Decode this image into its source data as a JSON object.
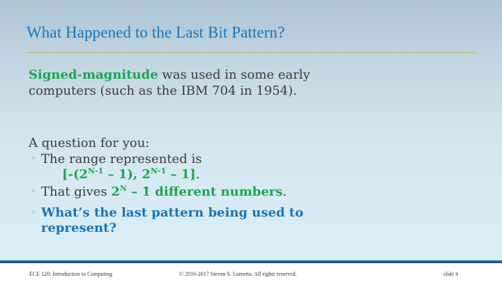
{
  "slide": {
    "title": "What Happened to the Last Bit Pattern?",
    "para": {
      "term": "Signed-magnitude",
      "line1_rest": " was used in some early",
      "line2": "computers (such as the IBM 704 in 1954)."
    },
    "question_intro": "A question for you:",
    "bullets": [
      {
        "text": "The range represented is",
        "formula": {
          "p1": "[-(2",
          "sup1": "N-1",
          "p2": " – 1), 2",
          "sup2": "N-1",
          "p3": " – 1]",
          "end": "."
        }
      },
      {
        "pre": "That gives ",
        "base": "2",
        "sup": "N",
        "em": " – 1 different numbers",
        "end": "."
      },
      {
        "line1": "What’s the last pattern being used to",
        "line2": "represent?"
      }
    ],
    "bullet_glyph": "◦"
  },
  "footer": {
    "course": "ECE 120: Introduction to Computing",
    "copyright": "© 2016-2017 Steven S. Lumetta.  All rights reserved.",
    "slide_num": "slide 4"
  },
  "colors": {
    "title": "#1a74b8",
    "green": "#1aa64a",
    "footer_bar": "#1f5b96"
  }
}
